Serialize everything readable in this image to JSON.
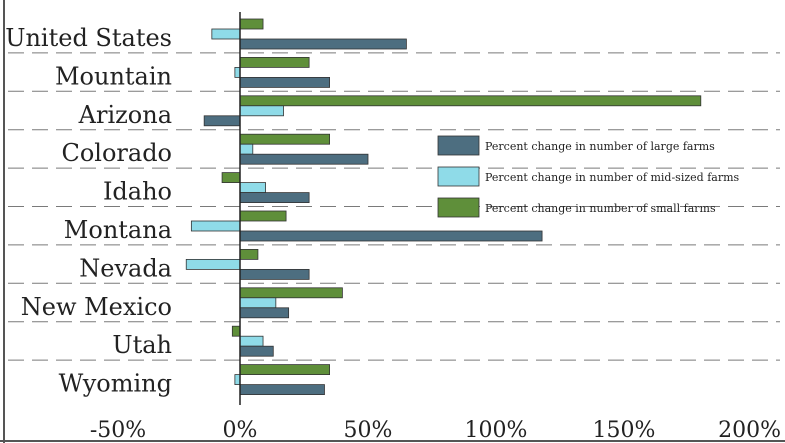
{
  "chart_data": {
    "type": "bar",
    "orientation": "horizontal",
    "categories": [
      "United States",
      "Mountain",
      "Arizona",
      "Colorado",
      "Idaho",
      "Montana",
      "Nevada",
      "New Mexico",
      "Utah",
      "Wyoming"
    ],
    "series": [
      {
        "name": "Percent change in number of small farms",
        "color": "#5f8f3a",
        "values": [
          9,
          27,
          180,
          35,
          -7,
          18,
          7,
          40,
          -3,
          35
        ]
      },
      {
        "name": "Percent change in number of mid-sized farms",
        "color": "#8fdbe8",
        "values": [
          -11,
          -2,
          17,
          5,
          10,
          -19,
          -21,
          14,
          9,
          -2
        ]
      },
      {
        "name": "Percent change in number of large farms",
        "color": "#4d6e80",
        "values": [
          65,
          35,
          -14,
          50,
          27,
          118,
          27,
          19,
          13,
          33
        ]
      }
    ],
    "legend": {
      "position": "right",
      "order": [
        "Percent change in number of large farms",
        "Percent change in number of mid-sized farms",
        "Percent change in number of small farms"
      ]
    },
    "xticks": [
      "-50%",
      "0%",
      "50%",
      "100%",
      "150%",
      "200%"
    ],
    "xtick_values": [
      -50,
      0,
      50,
      100,
      150,
      200
    ],
    "xlim": [
      -50,
      200
    ],
    "grid": "dashed horizontal separators between categories",
    "title": "",
    "xlabel": "",
    "ylabel": ""
  }
}
